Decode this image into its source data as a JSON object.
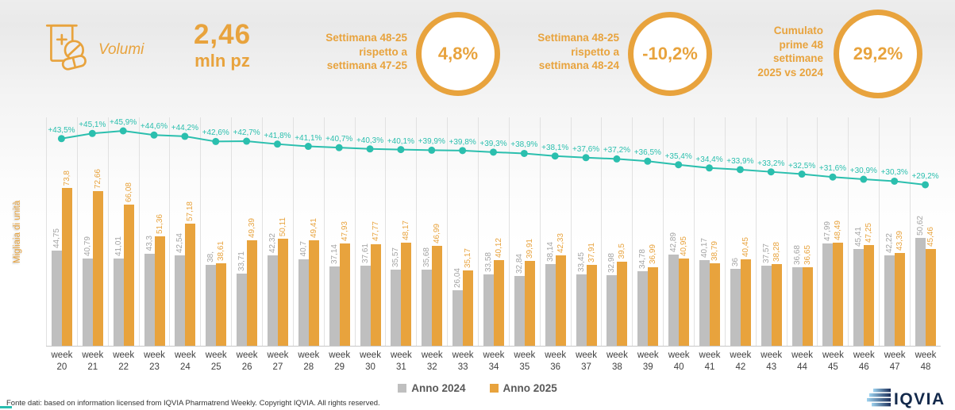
{
  "header": {
    "product": {
      "label": "Volumi",
      "value": "2,46",
      "unit": "mln pz"
    },
    "kpis": [
      {
        "label": "Settimana 48-25\nrispetto a\nsettimana 47-25",
        "value": "4,8%"
      },
      {
        "label": "Settimana 48-25\nrispetto a\nsettimana 48-24",
        "value": "-10,2%"
      },
      {
        "label": "Cumulato\nprime 48\nsettimane\n2025 vs 2024",
        "value": "29,2%"
      }
    ]
  },
  "chart_data": {
    "type": "bar",
    "ylabel": "Migliaia di unità",
    "categories": [
      "week 20",
      "week 21",
      "week 22",
      "week 23",
      "week 24",
      "week 25",
      "week 26",
      "week 27",
      "week 28",
      "week 29",
      "week 30",
      "week 31",
      "week 32",
      "week 33",
      "week 34",
      "week 35",
      "week 36",
      "week 37",
      "week 38",
      "week 39",
      "week 40",
      "week 41",
      "week 42",
      "week 43",
      "week 44",
      "week 45",
      "week 46",
      "week 47",
      "week 48"
    ],
    "series": [
      {
        "name": "Anno 2024",
        "color": "#BFBFBF",
        "labels": [
          "44,75",
          "40,79",
          "41,01",
          "43,3",
          "42,54",
          "38,",
          "33,71",
          "42,32",
          "40,7",
          "37,14",
          "37,61",
          "35,57",
          "35,68",
          "26,04",
          "33,58",
          "32,84",
          "38,14",
          "33,45",
          "32,98",
          "34,78",
          "42,89",
          "40,17",
          "36",
          "37,57",
          "36,68",
          "47,99",
          "45,41",
          "42,22",
          "50,62"
        ]
      },
      {
        "name": "Anno 2025",
        "color": "#E8A33D",
        "labels": [
          "73,8",
          "72,66",
          "66,08",
          "51,36",
          "57,18",
          "38,61",
          "49,39",
          "50,11",
          "49,41",
          "47,93",
          "47,77",
          "48,17",
          "46,99",
          "35,17",
          "40,12",
          "39,91",
          "42,33",
          "37,91",
          "39,5",
          "36,99",
          "40,95",
          "38,79",
          "40,45",
          "38,28",
          "36,65",
          "48,49",
          "47,25",
          "43,39",
          "45,46"
        ]
      }
    ],
    "line": {
      "color": "#2BBFAE",
      "labels": [
        "+43,5%",
        "+45,1%",
        "+45,9%",
        "+44,6%",
        "+44,2%",
        "+42,6%",
        "+42,7%",
        "+41,8%",
        "+41,1%",
        "+40,7%",
        "+40,3%",
        "+40,1%",
        "+39,9%",
        "+39,8%",
        "+39,3%",
        "+38,9%",
        "+38,1%",
        "+37,6%",
        "+37,2%",
        "+36,5%",
        "+35,4%",
        "+34,4%",
        "+33,9%",
        "+33,2%",
        "+32,5%",
        "+31,6%",
        "+30,9%",
        "+30,3%",
        "+29,2%"
      ]
    }
  },
  "footer": {
    "source": "Fonte dati: based on information licensed from IQVIA Pharmatrend Weekly. Copyright IQVIA. All rights reserved.",
    "logo_text": "IQVIA"
  },
  "colors": {
    "accent_orange": "#E8A33D",
    "bar_gray": "#BFBFBF",
    "line_teal": "#2BBFAE"
  }
}
